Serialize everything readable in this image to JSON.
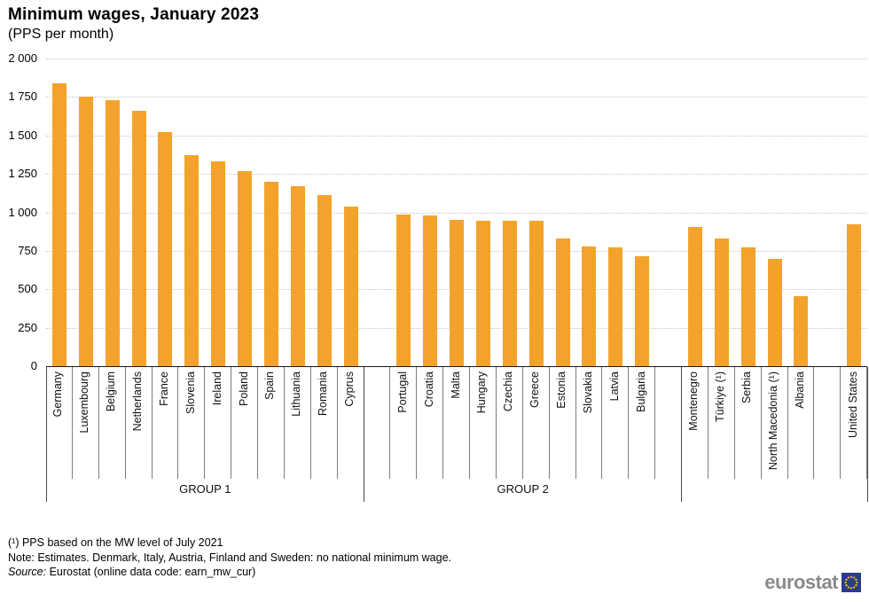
{
  "header": {
    "title": "Minimum wages, January 2023",
    "subtitle": "(PPS per month)"
  },
  "chart_data": {
    "type": "bar",
    "title": "Minimum wages, January 2023",
    "subtitle": "(PPS per month)",
    "unit": "PPS per month",
    "ylim": [
      0,
      2000
    ],
    "ytick_step": 250,
    "grid": "horizontal dotted gridlines every 250",
    "legend": null,
    "bar_color": "#F3A32B",
    "yticks": [
      {
        "value": 2000,
        "label": "2 000"
      },
      {
        "value": 1750,
        "label": "1 750"
      },
      {
        "value": 1500,
        "label": "1 500"
      },
      {
        "value": 1250,
        "label": "1 250"
      },
      {
        "value": 1000,
        "label": "1 000"
      },
      {
        "value": 750,
        "label": "750"
      },
      {
        "value": 500,
        "label": "500"
      },
      {
        "value": 250,
        "label": "250"
      },
      {
        "value": 0,
        "label": "0"
      }
    ],
    "groups": [
      {
        "label": "GROUP 1",
        "slots": [
          {
            "name": "Germany",
            "value": 1840
          },
          {
            "name": "Luxembourg",
            "value": 1750
          },
          {
            "name": "Belgium",
            "value": 1730
          },
          {
            "name": "Netherlands",
            "value": 1660
          },
          {
            "name": "France",
            "value": 1520
          },
          {
            "name": "Slovenia",
            "value": 1370
          },
          {
            "name": "Ireland",
            "value": 1330
          },
          {
            "name": "Poland",
            "value": 1270
          },
          {
            "name": "Spain",
            "value": 1200
          },
          {
            "name": "Lithuania",
            "value": 1170
          },
          {
            "name": "Romania",
            "value": 1110
          },
          {
            "name": "Cyprus",
            "value": 1040
          }
        ]
      },
      {
        "label": "GROUP 2",
        "slots": [
          {
            "spacer": true
          },
          {
            "name": "Portugal",
            "value": 985
          },
          {
            "name": "Croatia",
            "value": 980
          },
          {
            "name": "Malta",
            "value": 950
          },
          {
            "name": "Hungary",
            "value": 945
          },
          {
            "name": "Czechia",
            "value": 945
          },
          {
            "name": "Greece",
            "value": 945
          },
          {
            "name": "Estonia",
            "value": 830
          },
          {
            "name": "Slovakia",
            "value": 780
          },
          {
            "name": "Latvia",
            "value": 775
          },
          {
            "name": "Bulgaria",
            "value": 715
          },
          {
            "spacer": true
          }
        ]
      },
      {
        "label": "",
        "slots": [
          {
            "name": "Montenegro",
            "value": 905
          },
          {
            "name": "Türkiye (¹)",
            "value": 830
          },
          {
            "name": "Serbia",
            "value": 770
          },
          {
            "name": "North Macedonia (¹)",
            "value": 700
          },
          {
            "name": "Albania",
            "value": 455
          },
          {
            "spacer": true
          },
          {
            "name": "United States",
            "value": 920
          }
        ]
      }
    ]
  },
  "footnotes": {
    "fn1": "(¹) PPS based on the MW level of July 2021",
    "note": "Note: Estimates. Denmark, Italy, Austria, Finland and Sweden: no national minimum wage.",
    "source_label": "Source:",
    "source_text": "Eurostat (online data code: earn_mw_cur)"
  },
  "logo": {
    "text": "eurostat",
    "flag_color": "#2B3C8F",
    "star_color": "#FFCC00"
  }
}
